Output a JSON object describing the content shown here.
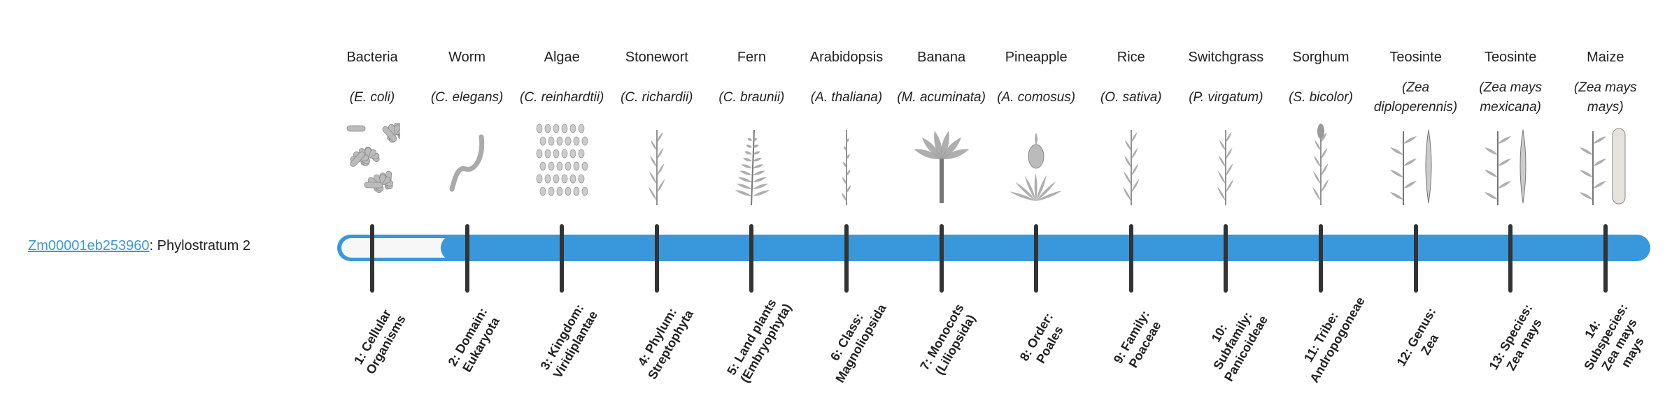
{
  "gene": {
    "id": "Zm00001eb253960",
    "separator": ": ",
    "phylostratum_text": "Phylostratum 2"
  },
  "progress": {
    "current_stratum": 2,
    "total_strata": 14
  },
  "colors": {
    "bar": "#3898db",
    "link": "#3a9ad9",
    "tick": "#333333",
    "bar_empty": "#f7f7f7"
  },
  "organisms": [
    {
      "name": "Bacteria",
      "scientific": "(E. coli)",
      "icon": "bacteria-icon",
      "stratum": "1: Cellular Organisms"
    },
    {
      "name": "Worm",
      "scientific": "(C. elegans)",
      "icon": "worm-icon",
      "stratum": "2: Domain: Eukaryota"
    },
    {
      "name": "Algae",
      "scientific": "(C. reinhardtii)",
      "icon": "algae-icon",
      "stratum": "3: Kingdom: Viridiplantae"
    },
    {
      "name": "Stonewort",
      "scientific": "(C. richardii)",
      "icon": "stonewort-icon",
      "stratum": "4: Phylum: Streptophyta"
    },
    {
      "name": "Fern",
      "scientific": "(C. braunii)",
      "icon": "fern-icon",
      "stratum": "5: Land plants (Embryophyta)"
    },
    {
      "name": "Arabidopsis",
      "scientific": "(A. thaliana)",
      "icon": "arabidopsis-icon",
      "stratum": "6: Class: Magnoliopsida"
    },
    {
      "name": "Banana",
      "scientific": "(M. acuminata)",
      "icon": "banana-plant-icon",
      "stratum": "7: Monocots (Liliopsida)"
    },
    {
      "name": "Pineapple",
      "scientific": "(A. comosus)",
      "icon": "pineapple-icon",
      "stratum": "8: Order: Poales"
    },
    {
      "name": "Rice",
      "scientific": "(O. sativa)",
      "icon": "rice-icon",
      "stratum": "9: Family: Poaceae"
    },
    {
      "name": "Switchgrass",
      "scientific": "(P. virgatum)",
      "icon": "switchgrass-icon",
      "stratum": "10: Subfamily: Panicoideae"
    },
    {
      "name": "Sorghum",
      "scientific": "(S. bicolor)",
      "icon": "sorghum-icon",
      "stratum": "11: Tribe: Andropogoneae"
    },
    {
      "name": "Teosinte",
      "scientific": "(Zea diploperennis)",
      "icon": "teosinte-icon",
      "stratum": "12: Genus: Zea"
    },
    {
      "name": "Teosinte",
      "scientific": "(Zea mays mexicana)",
      "icon": "teosinte-icon",
      "stratum": "13: Species: Zea mays"
    },
    {
      "name": "Maize",
      "scientific": "(Zea mays mays)",
      "icon": "maize-icon",
      "stratum": "14: Subspecies: Zea mays mays"
    }
  ]
}
